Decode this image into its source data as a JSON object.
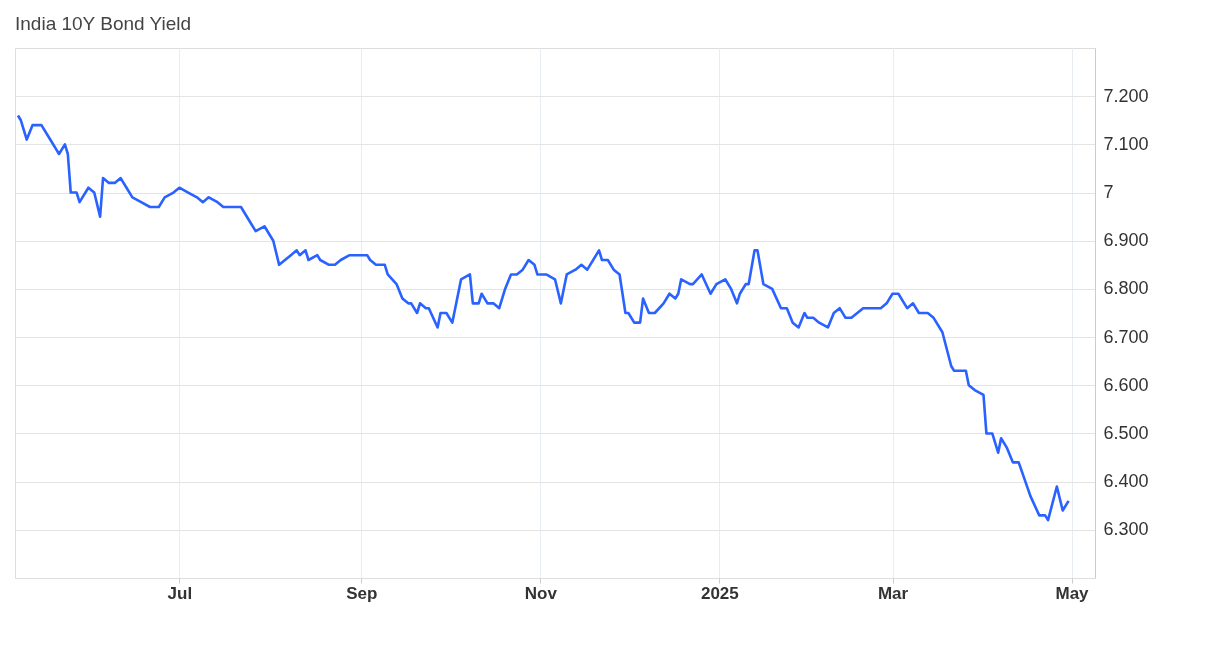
{
  "chart_data": {
    "type": "line",
    "title": "India 10Y Bond Yield",
    "x": [
      "2024-05-07",
      "2024-05-08",
      "2024-05-10",
      "2024-05-12",
      "2024-05-15",
      "2024-05-18",
      "2024-05-20",
      "2024-05-21",
      "2024-05-23",
      "2024-05-24",
      "2024-05-25",
      "2024-05-27",
      "2024-05-28",
      "2024-05-31",
      "2024-06-02",
      "2024-06-04",
      "2024-06-05",
      "2024-06-07",
      "2024-06-09",
      "2024-06-11",
      "2024-06-13",
      "2024-06-15",
      "2024-06-18",
      "2024-06-21",
      "2024-06-24",
      "2024-06-26",
      "2024-06-29",
      "2024-07-01",
      "2024-07-04",
      "2024-07-07",
      "2024-07-09",
      "2024-07-11",
      "2024-07-14",
      "2024-07-16",
      "2024-07-20",
      "2024-07-22",
      "2024-07-25",
      "2024-07-27",
      "2024-07-30",
      "2024-08-02",
      "2024-08-04",
      "2024-08-06",
      "2024-08-08",
      "2024-08-10",
      "2024-08-11",
      "2024-08-13",
      "2024-08-14",
      "2024-08-17",
      "2024-08-18",
      "2024-08-21",
      "2024-08-23",
      "2024-08-25",
      "2024-08-28",
      "2024-08-31",
      "2024-09-03",
      "2024-09-04",
      "2024-09-06",
      "2024-09-09",
      "2024-09-10",
      "2024-09-13",
      "2024-09-15",
      "2024-09-17",
      "2024-09-18",
      "2024-09-20",
      "2024-09-21",
      "2024-09-23",
      "2024-09-24",
      "2024-09-27",
      "2024-09-28",
      "2024-09-30",
      "2024-10-02",
      "2024-10-05",
      "2024-10-08",
      "2024-10-09",
      "2024-10-11",
      "2024-10-12",
      "2024-10-14",
      "2024-10-16",
      "2024-10-18",
      "2024-10-20",
      "2024-10-22",
      "2024-10-24",
      "2024-10-26",
      "2024-10-28",
      "2024-10-30",
      "2024-10-31",
      "2024-11-03",
      "2024-11-06",
      "2024-11-08",
      "2024-11-10",
      "2024-11-13",
      "2024-11-15",
      "2024-11-17",
      "2024-11-21",
      "2024-11-22",
      "2024-11-24",
      "2024-11-26",
      "2024-11-28",
      "2024-11-30",
      "2024-12-01",
      "2024-12-03",
      "2024-12-05",
      "2024-12-06",
      "2024-12-08",
      "2024-12-10",
      "2024-12-13",
      "2024-12-15",
      "2024-12-17",
      "2024-12-18",
      "2024-12-19",
      "2024-12-22",
      "2024-12-23",
      "2024-12-26",
      "2024-12-29",
      "2024-12-31",
      "2025-01-03",
      "2025-01-05",
      "2025-01-07",
      "2025-01-08",
      "2025-01-10",
      "2025-01-11",
      "2025-01-13",
      "2025-01-14",
      "2025-01-16",
      "2025-01-19",
      "2025-01-22",
      "2025-01-24",
      "2025-01-26",
      "2025-01-28",
      "2025-01-30",
      "2025-01-31",
      "2025-02-02",
      "2025-02-04",
      "2025-02-07",
      "2025-02-09",
      "2025-02-11",
      "2025-02-13",
      "2025-02-15",
      "2025-02-17",
      "2025-02-19",
      "2025-02-22",
      "2025-02-25",
      "2025-02-27",
      "2025-03-01",
      "2025-03-03",
      "2025-03-05",
      "2025-03-06",
      "2025-03-08",
      "2025-03-10",
      "2025-03-13",
      "2025-03-15",
      "2025-03-18",
      "2025-03-21",
      "2025-03-22",
      "2025-03-26",
      "2025-03-27",
      "2025-03-29",
      "2025-04-01",
      "2025-04-02",
      "2025-04-04",
      "2025-04-06",
      "2025-04-07",
      "2025-04-09",
      "2025-04-11",
      "2025-04-13",
      "2025-04-17",
      "2025-04-20",
      "2025-04-22",
      "2025-04-23",
      "2025-04-26",
      "2025-04-28",
      "2025-04-30"
    ],
    "series": [
      {
        "color": "#2962ff",
        "values": [
          7.16,
          7.15,
          7.11,
          7.14,
          7.14,
          7.11,
          7.09,
          7.08,
          7.1,
          7.08,
          7.0,
          7.0,
          6.98,
          7.01,
          7.0,
          6.95,
          7.03,
          7.02,
          7.02,
          7.03,
          7.01,
          6.99,
          6.98,
          6.97,
          6.97,
          6.99,
          7.0,
          7.01,
          7.0,
          6.99,
          6.98,
          6.99,
          6.98,
          6.97,
          6.97,
          6.97,
          6.94,
          6.92,
          6.93,
          6.9,
          6.85,
          6.86,
          6.87,
          6.88,
          6.87,
          6.88,
          6.86,
          6.87,
          6.86,
          6.85,
          6.85,
          6.86,
          6.87,
          6.87,
          6.87,
          6.86,
          6.85,
          6.85,
          6.83,
          6.81,
          6.78,
          6.77,
          6.77,
          6.75,
          6.77,
          6.76,
          6.76,
          6.72,
          6.75,
          6.75,
          6.73,
          6.82,
          6.83,
          6.77,
          6.77,
          6.79,
          6.77,
          6.77,
          6.76,
          6.8,
          6.83,
          6.83,
          6.84,
          6.86,
          6.85,
          6.83,
          6.83,
          6.82,
          6.77,
          6.83,
          6.84,
          6.85,
          6.84,
          6.88,
          6.86,
          6.86,
          6.84,
          6.83,
          6.75,
          6.75,
          6.73,
          6.73,
          6.78,
          6.75,
          6.75,
          6.77,
          6.79,
          6.78,
          6.79,
          6.82,
          6.81,
          6.81,
          6.83,
          6.79,
          6.81,
          6.82,
          6.8,
          6.77,
          6.79,
          6.81,
          6.81,
          6.88,
          6.88,
          6.81,
          6.8,
          6.76,
          6.76,
          6.73,
          6.72,
          6.75,
          6.74,
          6.74,
          6.73,
          6.72,
          6.75,
          6.76,
          6.74,
          6.74,
          6.75,
          6.76,
          6.76,
          6.76,
          6.77,
          6.79,
          6.79,
          6.77,
          6.76,
          6.77,
          6.75,
          6.75,
          6.74,
          6.71,
          6.64,
          6.63,
          6.63,
          6.6,
          6.59,
          6.58,
          6.5,
          6.5,
          6.46,
          6.49,
          6.47,
          6.44,
          6.44,
          6.37,
          6.33,
          6.33,
          6.32,
          6.39,
          6.34,
          6.36
        ]
      }
    ],
    "xlim": [
      "2024-05-06",
      "2025-05-09"
    ],
    "xticks": [
      {
        "value": "2024-07-01",
        "label": "Jul"
      },
      {
        "value": "2024-09-01",
        "label": "Sep"
      },
      {
        "value": "2024-11-01",
        "label": "Nov"
      },
      {
        "value": "2025-01-01",
        "label": "2025"
      },
      {
        "value": "2025-03-01",
        "label": "Mar"
      },
      {
        "value": "2025-05-01",
        "label": "May"
      }
    ],
    "ylim": [
      6.2,
      7.3
    ],
    "yticks": [
      {
        "value": 6.3,
        "label": "6.300"
      },
      {
        "value": 6.4,
        "label": "6.400"
      },
      {
        "value": 6.5,
        "label": "6.500"
      },
      {
        "value": 6.6,
        "label": "6.600"
      },
      {
        "value": 6.7,
        "label": "6.700"
      },
      {
        "value": 6.8,
        "label": "6.800"
      },
      {
        "value": 6.9,
        "label": "6.900"
      },
      {
        "value": 7.0,
        "label": "7"
      },
      {
        "value": 7.1,
        "label": "7.100"
      },
      {
        "value": 7.2,
        "label": "7.200"
      }
    ],
    "grid": true,
    "line_style": "solid",
    "marker": "none"
  }
}
